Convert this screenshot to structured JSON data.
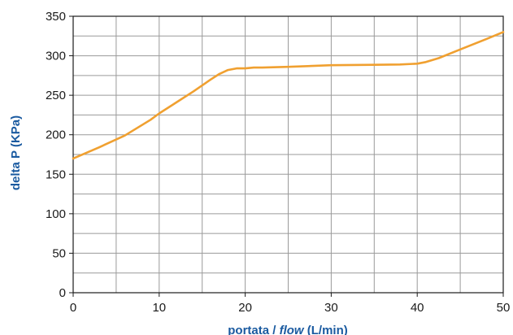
{
  "chart_data": {
    "type": "line",
    "xlabel_main": "portata / ",
    "xlabel_italic": "flow",
    "xlabel_unit": " (L/min)",
    "ylabel": "delta P (KPa)",
    "xlim": [
      0,
      50
    ],
    "ylim": [
      0,
      350
    ],
    "xticks": [
      0,
      10,
      20,
      30,
      40,
      50
    ],
    "yticks": [
      0,
      50,
      100,
      150,
      200,
      250,
      300,
      350
    ],
    "grid": true,
    "colors": {
      "line": "#f0a030",
      "grid": "#9a9a9a",
      "axis_title": "#1a5aa0",
      "frame": "#1a1a1a"
    },
    "series": [
      {
        "x": [
          0,
          3,
          6,
          9,
          10,
          12,
          14,
          16,
          17,
          18,
          19,
          20,
          21,
          22,
          25,
          30,
          35,
          38,
          40,
          41,
          42.5,
          45,
          48,
          50
        ],
        "y": [
          170,
          184,
          199,
          219,
          227,
          241,
          255,
          270,
          277,
          282,
          284,
          284,
          285,
          285,
          286,
          288,
          288.5,
          289,
          290,
          292,
          297,
          308,
          321,
          330
        ]
      }
    ]
  }
}
